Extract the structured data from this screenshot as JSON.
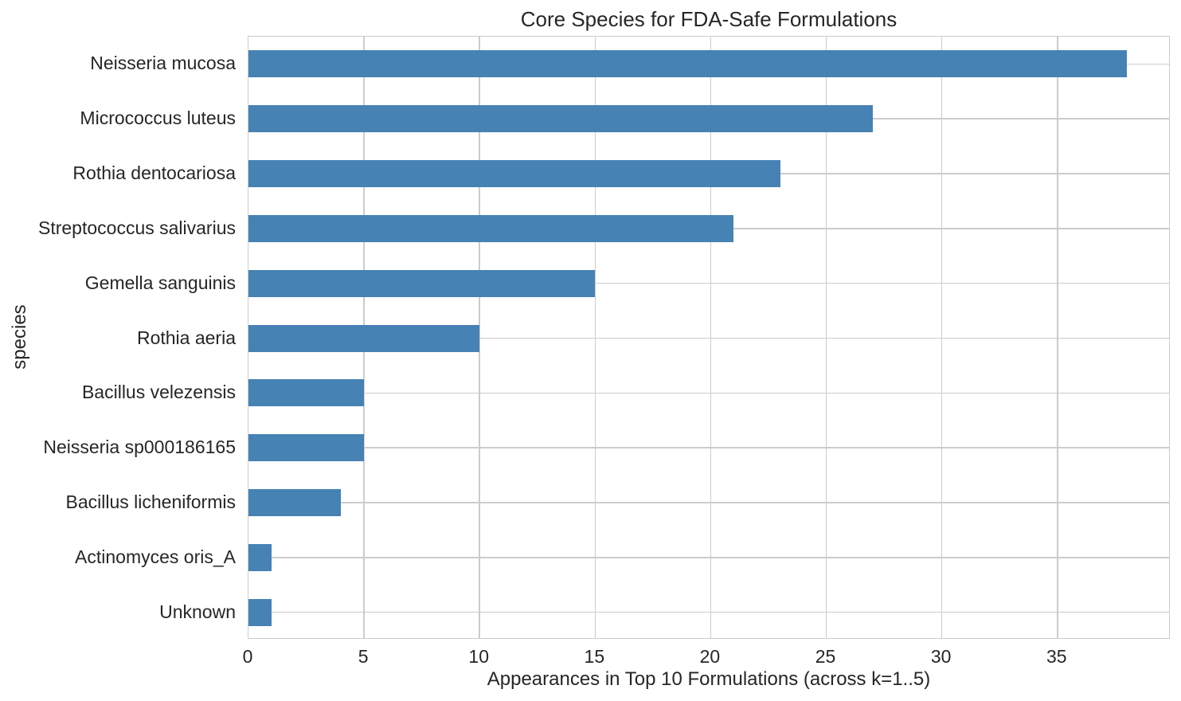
{
  "figure": {
    "title": "Core Species for FDA-Safe Formulations",
    "xlabel": "Appearances in Top 10 Formulations (across k=1..5)",
    "ylabel": "species"
  },
  "chart_data": {
    "type": "bar",
    "orientation": "horizontal",
    "title": "Core Species for FDA-Safe Formulations",
    "xlabel": "Appearances in Top 10 Formulations (across k=1..5)",
    "ylabel": "species",
    "categories": [
      "Neisseria mucosa",
      "Micrococcus luteus",
      "Rothia dentocariosa",
      "Streptococcus salivarius",
      "Gemella sanguinis",
      "Rothia aeria",
      "Bacillus velezensis",
      "Neisseria sp000186165",
      "Bacillus licheniformis",
      "Actinomyces oris_A",
      "Unknown"
    ],
    "values": [
      38,
      27,
      23,
      21,
      15,
      10,
      5,
      5,
      4,
      1,
      1
    ],
    "xlim": [
      0,
      39.9
    ],
    "xticks": [
      0,
      5,
      10,
      15,
      20,
      25,
      30,
      35
    ],
    "grid": true,
    "grid_axes": "both",
    "legend": "none",
    "colors": {
      "bar": "#4682B4",
      "grid": "#cccccc",
      "spine": "#cccccc",
      "text": "#262626"
    }
  }
}
